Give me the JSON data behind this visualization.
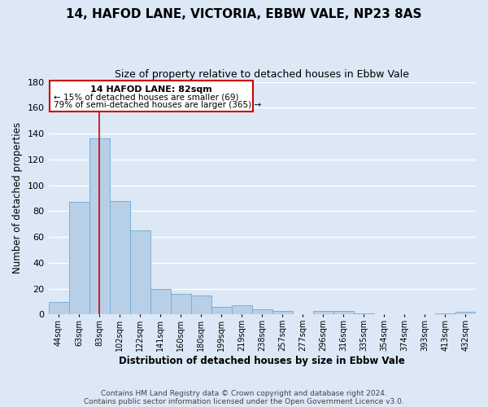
{
  "title": "14, HAFOD LANE, VICTORIA, EBBW VALE, NP23 8AS",
  "subtitle": "Size of property relative to detached houses in Ebbw Vale",
  "xlabel": "Distribution of detached houses by size in Ebbw Vale",
  "ylabel": "Number of detached properties",
  "bar_color": "#b8cfe8",
  "bar_edge_color": "#7aafd4",
  "highlight_line_color": "#cc0000",
  "background_color": "#dce8f5",
  "plot_bg_color": "#dce8f5",
  "categories": [
    "44sqm",
    "63sqm",
    "83sqm",
    "102sqm",
    "122sqm",
    "141sqm",
    "160sqm",
    "180sqm",
    "199sqm",
    "219sqm",
    "238sqm",
    "257sqm",
    "277sqm",
    "296sqm",
    "316sqm",
    "335sqm",
    "354sqm",
    "374sqm",
    "393sqm",
    "413sqm",
    "432sqm"
  ],
  "values": [
    10,
    87,
    136,
    88,
    65,
    20,
    16,
    15,
    6,
    7,
    4,
    3,
    0,
    3,
    3,
    1,
    0,
    0,
    0,
    1,
    2
  ],
  "ylim": [
    0,
    180
  ],
  "yticks": [
    0,
    20,
    40,
    60,
    80,
    100,
    120,
    140,
    160,
    180
  ],
  "highlight_index": 2,
  "annotation_title": "14 HAFOD LANE: 82sqm",
  "annotation_line1": "← 15% of detached houses are smaller (69)",
  "annotation_line2": "79% of semi-detached houses are larger (365) →",
  "footer_line1": "Contains HM Land Registry data © Crown copyright and database right 2024.",
  "footer_line2": "Contains public sector information licensed under the Open Government Licence v3.0."
}
